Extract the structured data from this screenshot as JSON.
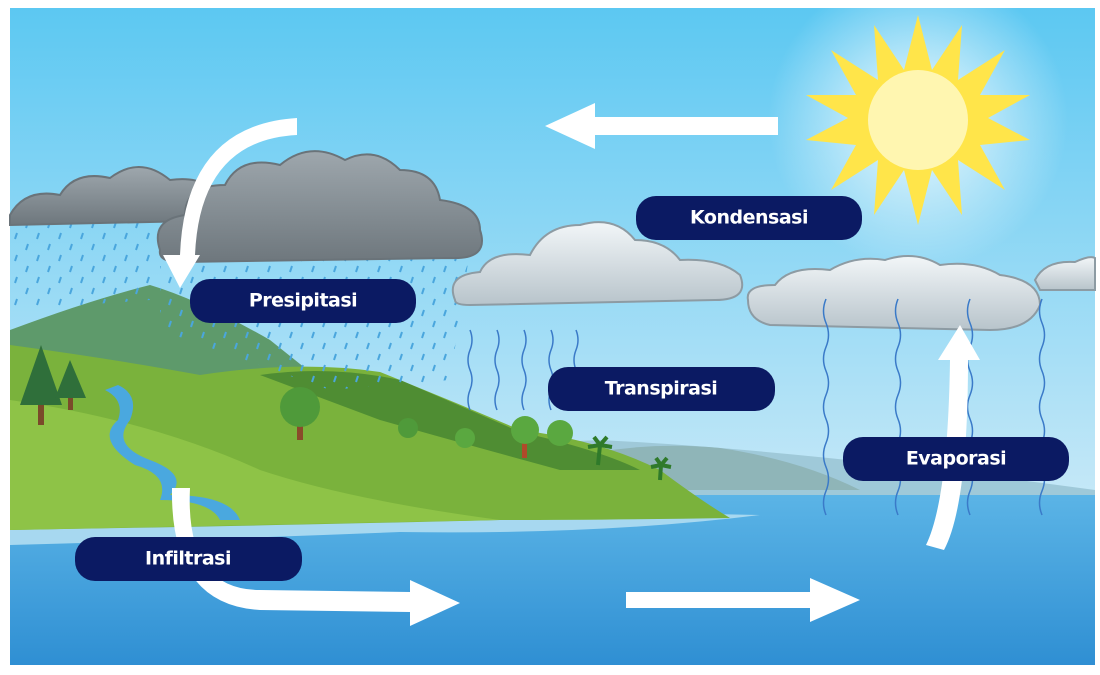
{
  "nodes": [
    {
      "label": "Kondensasi"
    },
    {
      "label": "Presipitasi"
    },
    {
      "label": "Transpirasi"
    },
    {
      "label": "Evaporasi"
    },
    {
      "label": "Infiltrasi"
    }
  ]
}
